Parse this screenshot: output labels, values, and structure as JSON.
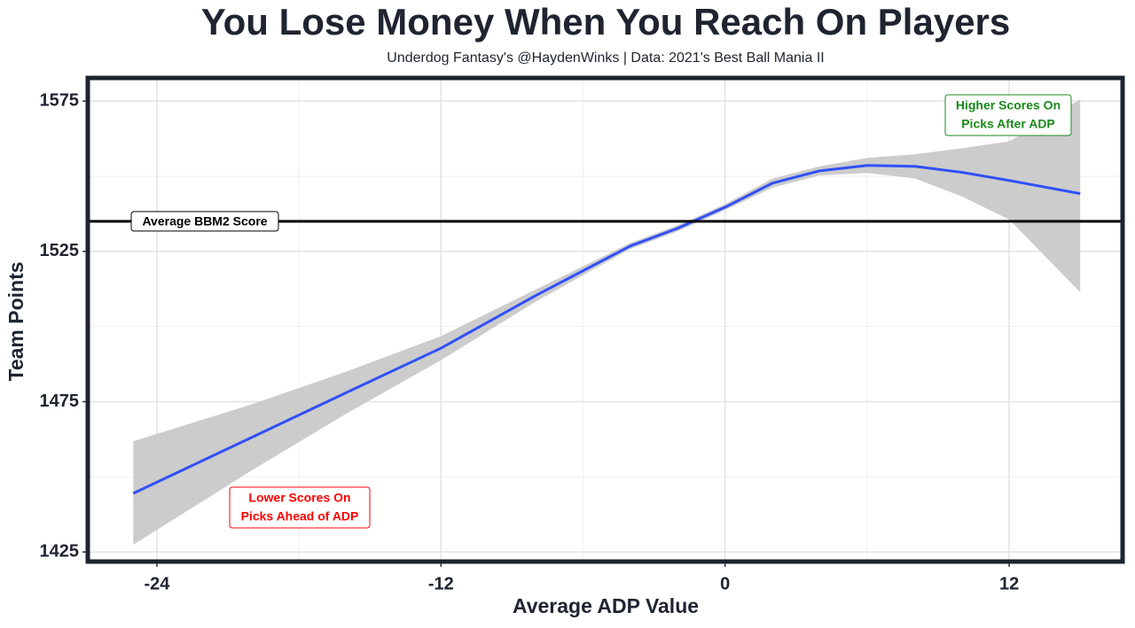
{
  "chart_data": {
    "type": "line",
    "title": "You Lose Money When You Reach On Players",
    "subtitle": "Underdog Fantasy's @HaydenWinks | Data: 2021's Best Ball Mania II",
    "x_label": "Average ADP Value",
    "y_label": "Team Points",
    "x": [
      -25,
      -20,
      -16,
      -12,
      -8,
      -4,
      -2,
      0,
      2,
      4,
      6,
      8,
      10,
      12,
      15
    ],
    "series": [
      {
        "color": "#3050f8",
        "band_color": "#cccccc",
        "values": [
          1444.5,
          1463.1,
          1478.0,
          1492.8,
          1510.3,
          1526.8,
          1532.7,
          1539.7,
          1547.7,
          1551.8,
          1553.6,
          1553.3,
          1551.3,
          1548.6,
          1544.2
        ],
        "lower": [
          1427.4,
          1452.1,
          1471.0,
          1488.8,
          1508.3,
          1525.8,
          1531.7,
          1538.7,
          1546.2,
          1550.3,
          1551.1,
          1549.3,
          1543.3,
          1535.6,
          1511.4
        ],
        "upper": [
          1461.8,
          1474.1,
          1485.0,
          1496.8,
          1512.3,
          1527.8,
          1533.7,
          1540.7,
          1549.2,
          1553.3,
          1556.1,
          1557.3,
          1559.3,
          1561.6,
          1575.6
        ]
      }
    ],
    "reference_line": {
      "value": 1535,
      "label": "Average BBM2 Score",
      "color": "#000000"
    },
    "annotations": [
      {
        "lines": [
          "Higher Scores On",
          "Picks After ADP"
        ],
        "color": "#1a8a1a"
      },
      {
        "lines": [
          "Lower Scores On",
          "Picks Ahead of ADP"
        ],
        "color": "#ff0000"
      }
    ],
    "xlim": [
      -26.92,
      16.79
    ],
    "ylim": [
      1421.8,
      1582.7
    ],
    "xticks": [
      -24,
      -12,
      0,
      12
    ],
    "yticks": [
      1425,
      1475,
      1525,
      1575
    ],
    "grid": true
  }
}
